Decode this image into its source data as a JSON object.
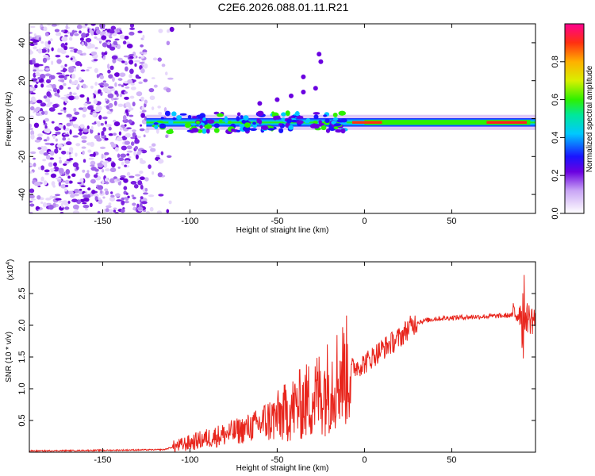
{
  "title": "C2E6.2026.088.01.11.R21",
  "colors": {
    "signal": "#e8251c",
    "noise": "#8a2be2",
    "axis": "#000000"
  },
  "chart_data": [
    {
      "type": "heatmap",
      "xlabel": "Height of straight line (km)",
      "ylabel": "Frequency (Hz)",
      "xlim": [
        -192,
        98
      ],
      "ylim": [
        -50,
        50
      ],
      "xticks": [
        -150,
        -100,
        -50,
        0,
        50
      ],
      "yticks": [
        -40,
        -20,
        0,
        20,
        40
      ],
      "colorbar": {
        "label": "Normalized spectral amplitude",
        "range": [
          0.0,
          1.0
        ],
        "ticks": [
          0.0,
          0.2,
          0.4,
          0.6,
          0.8
        ]
      },
      "band_center_hz": -2,
      "features": [
        {
          "from_km": -192,
          "to_km": -125,
          "kind": "broadband noise"
        },
        {
          "from_km": -125,
          "to_km": 98,
          "kind": "narrow band near 0 Hz"
        },
        {
          "from_km": 0,
          "to_km": 95,
          "kind": "peak amplitude band"
        }
      ]
    },
    {
      "type": "line",
      "xlabel": "Height of straight line (km)",
      "ylabel": "SNR (10 * v/v)",
      "multiplier_label": "(x10",
      "multiplier_exp": "4",
      "multiplier_close": ")",
      "xlim": [
        -192,
        98
      ],
      "ylim": [
        0,
        3.0
      ],
      "xticks": [
        -150,
        -100,
        -50,
        0,
        50
      ],
      "yticks": [
        0.5,
        1.0,
        1.5,
        2.0,
        2.5
      ],
      "ytick_labels": [
        "0.5",
        "1.0",
        "1.5",
        "2.0",
        "2.5"
      ],
      "series": [
        {
          "name": "SNR",
          "x": [
            -192,
            -150,
            -115,
            -110,
            -100,
            -90,
            -80,
            -70,
            -60,
            -50,
            -40,
            -30,
            -20,
            -15,
            -10,
            -5,
            0,
            10,
            20,
            25,
            30,
            40,
            50,
            60,
            70,
            80,
            85,
            88,
            90,
            92,
            95,
            98
          ],
          "y": [
            0.02,
            0.03,
            0.04,
            0.08,
            0.15,
            0.22,
            0.28,
            0.35,
            0.45,
            0.55,
            0.7,
            0.85,
            1.05,
            1.2,
            1.28,
            1.35,
            1.4,
            1.62,
            1.8,
            1.95,
            2.05,
            2.1,
            2.12,
            2.13,
            2.14,
            2.15,
            2.16,
            2.2,
            2.25,
            2.15,
            2.1,
            2.1
          ]
        }
      ]
    }
  ]
}
